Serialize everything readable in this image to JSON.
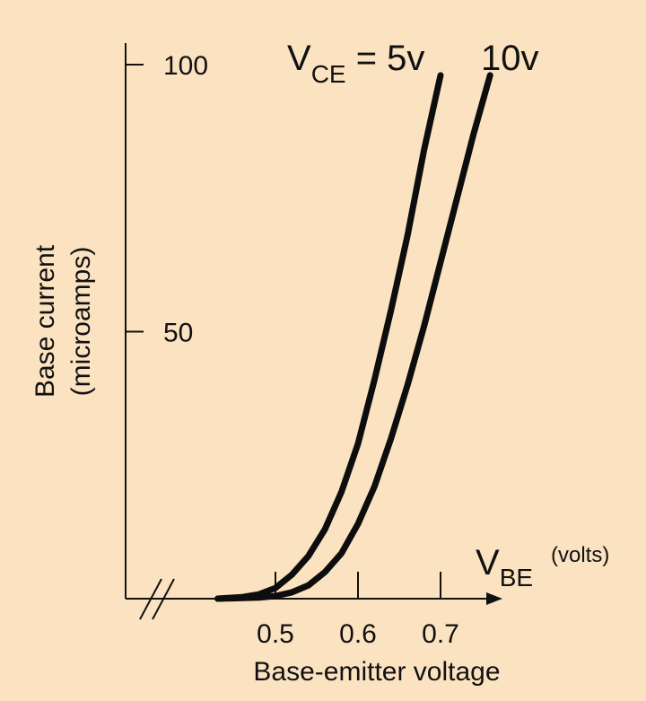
{
  "chart_data": {
    "type": "line",
    "xlabel": "Base-emitter voltage",
    "ylabel_line1": "Base current",
    "ylabel_line2": "(microamps)",
    "x_axis_symbol": {
      "main": "V",
      "sub": "BE",
      "unit": "(volts)"
    },
    "series_label": {
      "main": "V",
      "sub": "CE",
      "eq": " = 5v"
    },
    "series_label_2": "10v",
    "xlim": [
      0.4,
      0.8
    ],
    "ylim": [
      0,
      100
    ],
    "x_ticks": [
      0.5,
      0.6,
      0.7
    ],
    "x_tick_labels": [
      "0.5",
      "0.6",
      "0.7"
    ],
    "y_ticks": [
      50,
      100
    ],
    "y_tick_labels": [
      "50",
      "100"
    ],
    "axis_break": true,
    "series": [
      {
        "name": "V_CE = 5v",
        "x": [
          0.43,
          0.46,
          0.48,
          0.5,
          0.52,
          0.54,
          0.56,
          0.58,
          0.6,
          0.62,
          0.64,
          0.66,
          0.68,
          0.7
        ],
        "y": [
          0,
          0.3,
          0.8,
          2,
          4.5,
          8,
          13,
          20,
          29,
          41,
          54,
          68,
          84,
          98
        ]
      },
      {
        "name": "10v",
        "x": [
          0.43,
          0.48,
          0.5,
          0.52,
          0.54,
          0.56,
          0.58,
          0.6,
          0.62,
          0.64,
          0.66,
          0.68,
          0.7,
          0.72,
          0.74,
          0.76
        ],
        "y": [
          0,
          0.2,
          0.5,
          1.2,
          2.5,
          5,
          8.5,
          14,
          21,
          30,
          40,
          51,
          63,
          75,
          87,
          98
        ]
      }
    ]
  }
}
